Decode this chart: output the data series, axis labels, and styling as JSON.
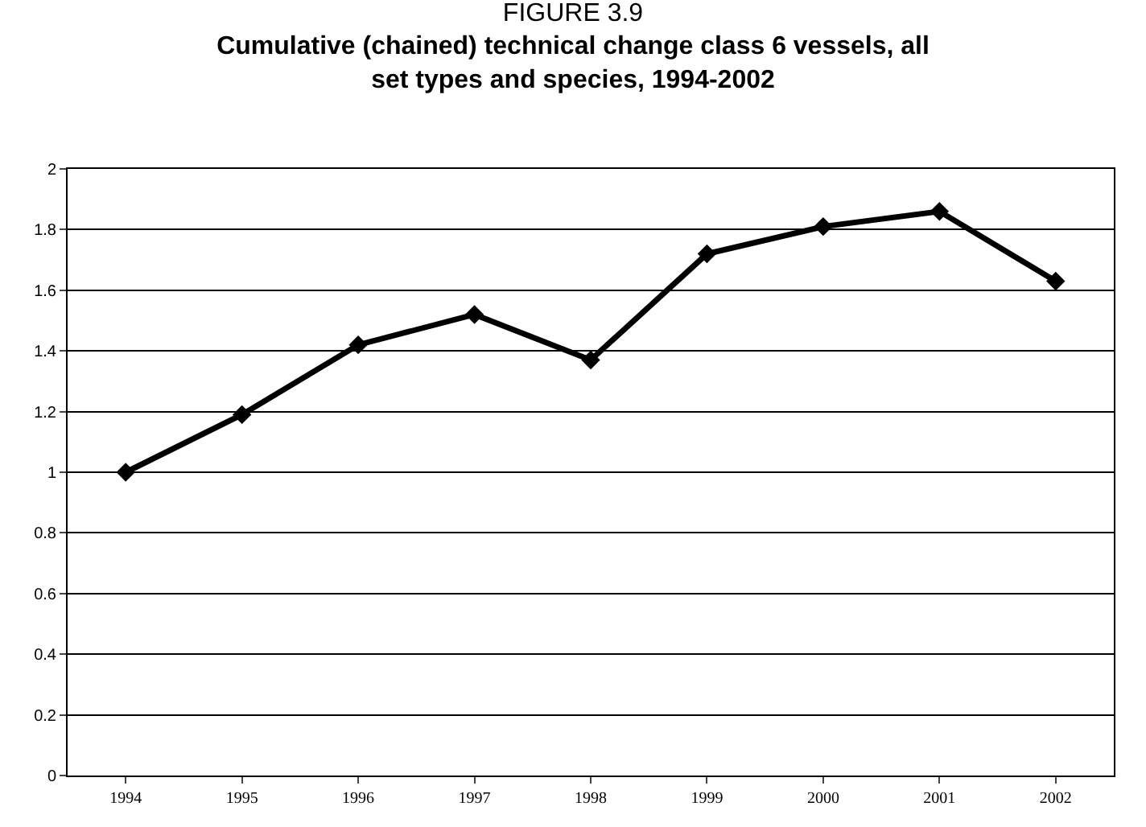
{
  "chart_data": {
    "type": "line",
    "title": "FIGURE 3.9",
    "subtitle": "Cumulative (chained) technical change class 6 vessels, all set types and species, 1994-2002",
    "categories": [
      "1994",
      "1995",
      "1996",
      "1997",
      "1998",
      "1999",
      "2000",
      "2001",
      "2002"
    ],
    "series": [
      {
        "color": "#000000",
        "values": [
          1.0,
          1.19,
          1.42,
          1.52,
          1.37,
          1.72,
          1.81,
          1.86,
          1.63
        ]
      }
    ],
    "ylim": [
      0,
      2
    ],
    "yticks": [
      0,
      0.2,
      0.4,
      0.6,
      0.8,
      1,
      1.2,
      1.4,
      1.6,
      1.8,
      2
    ],
    "grid": "y",
    "legend": false,
    "marker": "diamond",
    "line_style": "solid"
  }
}
